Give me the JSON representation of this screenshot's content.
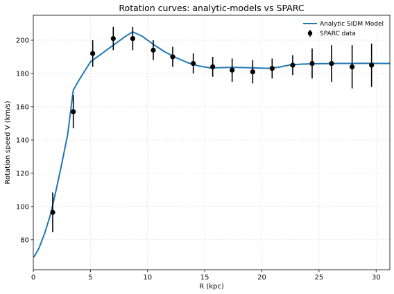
{
  "chart_data": {
    "type": "line",
    "title": "Rotation curves: analytic-models vs SPARC",
    "xlabel": "R (kpc)",
    "ylabel": "Rotation speed V (km/s)",
    "xlim": [
      0,
      31.2
    ],
    "ylim": [
      62,
      215
    ],
    "xticks": [
      0,
      5,
      10,
      15,
      20,
      25,
      30
    ],
    "yticks": [
      80,
      100,
      120,
      140,
      160,
      180,
      200
    ],
    "grid": true,
    "legend_position": "top-right",
    "series": [
      {
        "name": "Analytic SIDM Model",
        "kind": "line",
        "color": "#1f77b4",
        "x": [
          0.05,
          0.5,
          1.0,
          1.5,
          2.0,
          2.5,
          3.0,
          3.5,
          4.0,
          5.0,
          6.0,
          7.0,
          8.0,
          8.7,
          9.5,
          10.5,
          11.5,
          12.5,
          13.5,
          14.5,
          15.5,
          16.5,
          17.5,
          18.5,
          19.5,
          20.5,
          21.5,
          22.5,
          23.5,
          24.5,
          25.5,
          26.5,
          27.5,
          28.5,
          29.5,
          30.5,
          31.2
        ],
        "y": [
          69.5,
          75,
          84,
          95,
          110,
          126,
          143,
          170,
          176,
          187,
          192,
          197,
          202,
          205,
          202.5,
          197.5,
          193,
          189.5,
          186.5,
          184.5,
          183.3,
          183.5,
          183.7,
          183.5,
          183.3,
          183.1,
          183.8,
          185.2,
          185.6,
          185.8,
          185.9,
          186.0,
          186.0,
          186.1,
          186.1,
          186.0,
          186.0
        ]
      },
      {
        "name": "SPARC data",
        "kind": "errorbar",
        "color": "#000000",
        "x": [
          1.7,
          3.5,
          5.2,
          7.0,
          8.7,
          10.5,
          12.2,
          14.0,
          15.7,
          17.4,
          19.2,
          20.9,
          22.7,
          24.4,
          26.1,
          27.9,
          29.6
        ],
        "y": [
          96.5,
          157,
          192,
          201,
          201,
          194,
          190,
          186,
          184,
          182,
          181,
          183,
          185,
          186,
          186,
          184,
          185
        ],
        "err": [
          12,
          10,
          8,
          7,
          7,
          6,
          6,
          6,
          6,
          7,
          7,
          6,
          6,
          9,
          11,
          13,
          13
        ]
      }
    ]
  }
}
